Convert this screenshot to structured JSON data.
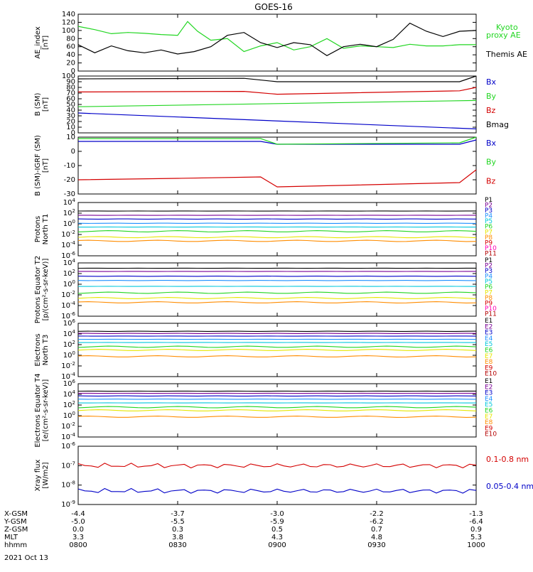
{
  "title": "GOES-16",
  "date_label": "2021 Oct 13",
  "time_axis": {
    "x_range": [
      "08:00",
      "10:00"
    ],
    "rows": [
      {
        "label": "X-GSM",
        "values": [
          "-4.4",
          "-3.7",
          "-3.0",
          "-2.2",
          "-1.3"
        ]
      },
      {
        "label": "Y-GSM",
        "values": [
          "-5.0",
          "-5.5",
          "-5.9",
          "-6.2",
          "-6.4"
        ]
      },
      {
        "label": "Z-GSM",
        "values": [
          "0.0",
          "0.3",
          "0.5",
          "0.7",
          "0.9"
        ]
      },
      {
        "label": "MLT",
        "values": [
          "3.3",
          "3.8",
          "4.3",
          "4.8",
          "5.3"
        ]
      },
      {
        "label": "hhmm",
        "values": [
          "0800",
          "0830",
          "0900",
          "0930",
          "1000"
        ]
      }
    ]
  },
  "colors": {
    "black": "#000000",
    "red": "#d40000",
    "green": "#22d622",
    "blue": "#0000c8",
    "cyan": "#00c8dc",
    "yellow": "#e6e600",
    "orange": "#ff8c00",
    "purple": "#7a0096",
    "pink": "#ff00b4",
    "darkred": "#b40000",
    "lightblue": "#1e90ff"
  },
  "chart_data": [
    {
      "type": "line",
      "ylabel": "AE_index [nT]",
      "ylim": [
        0,
        140
      ],
      "yticks": [
        "0",
        "20",
        "40",
        "60",
        "80",
        "100",
        "120",
        "140"
      ],
      "series": [
        {
          "name": "Kyoto proxy AE",
          "color": "#22d622",
          "x": [
            "08:00",
            "08:05",
            "08:10",
            "08:15",
            "08:20",
            "08:25",
            "08:30",
            "08:33",
            "08:36",
            "08:40",
            "08:45",
            "08:50",
            "08:55",
            "09:00",
            "09:05",
            "09:10",
            "09:15",
            "09:20",
            "09:25",
            "09:30",
            "09:35",
            "09:40",
            "09:45",
            "09:50",
            "09:55",
            "10:00"
          ],
          "values": [
            110,
            102,
            92,
            95,
            93,
            90,
            88,
            122,
            98,
            76,
            80,
            48,
            62,
            70,
            52,
            60,
            80,
            56,
            62,
            60,
            58,
            66,
            62,
            62,
            65,
            65
          ]
        },
        {
          "name": "Themis AE",
          "color": "#000000",
          "x": [
            "08:00",
            "08:05",
            "08:10",
            "08:15",
            "08:20",
            "08:25",
            "08:30",
            "08:35",
            "08:40",
            "08:45",
            "08:50",
            "08:55",
            "09:00",
            "09:05",
            "09:10",
            "09:15",
            "09:20",
            "09:25",
            "09:30",
            "09:35",
            "09:40",
            "09:45",
            "09:50",
            "09:55",
            "10:00"
          ],
          "values": [
            65,
            45,
            62,
            50,
            45,
            52,
            42,
            48,
            60,
            88,
            95,
            70,
            58,
            70,
            65,
            38,
            60,
            66,
            60,
            78,
            118,
            98,
            85,
            98,
            100
          ]
        }
      ]
    },
    {
      "type": "line",
      "ylabel": "B (SM) [nT]",
      "ylim": [
        0,
        100
      ],
      "yticks": [
        "0",
        "10",
        "20",
        "30",
        "40",
        "50",
        "60",
        "70",
        "80",
        "90",
        "100"
      ],
      "series": [
        {
          "name": "Bx",
          "color": "#0000c8",
          "x": [
            "08:00",
            "10:00"
          ],
          "values": [
            35,
            7
          ]
        },
        {
          "name": "By",
          "color": "#22d622",
          "x": [
            "08:00",
            "10:00"
          ],
          "values": [
            46,
            57
          ]
        },
        {
          "name": "Bz",
          "color": "#d40000",
          "x": [
            "08:00",
            "08:50",
            "09:00",
            "09:55",
            "10:00"
          ],
          "values": [
            72,
            73,
            68,
            74,
            80
          ]
        },
        {
          "name": "Bmag",
          "color": "#000000",
          "x": [
            "08:00",
            "08:50",
            "09:00",
            "09:55",
            "10:00"
          ],
          "values": [
            95,
            96,
            90,
            90,
            100
          ]
        }
      ]
    },
    {
      "type": "line",
      "ylabel": "B (SM)-IGRF (SM) [nT]",
      "ylim": [
        -30,
        10
      ],
      "yticks": [
        "-30",
        "-20",
        "-10",
        "0",
        "10"
      ],
      "series": [
        {
          "name": "Bx",
          "color": "#0000c8",
          "x": [
            "08:00",
            "08:55",
            "09:00",
            "09:55",
            "10:00"
          ],
          "values": [
            7,
            7,
            5,
            5,
            8
          ]
        },
        {
          "name": "By",
          "color": "#22d622",
          "x": [
            "08:00",
            "08:55",
            "09:00",
            "09:55",
            "10:00"
          ],
          "values": [
            9,
            9,
            5,
            6,
            10
          ]
        },
        {
          "name": "Bz",
          "color": "#d40000",
          "x": [
            "08:00",
            "08:30",
            "08:55",
            "09:00",
            "09:55",
            "10:00"
          ],
          "values": [
            -20,
            -19,
            -18,
            -25,
            -22,
            -13
          ]
        }
      ]
    },
    {
      "type": "line",
      "log": true,
      "ylabel": "Protons North T1",
      "ylim": [
        -6,
        4
      ],
      "yticks": [
        "10^-6",
        "10^-4",
        "10^-2",
        "10^0",
        "10^2",
        "10^4"
      ],
      "channels": [
        "P1",
        "P2",
        "P3",
        "P4",
        "P5",
        "P6",
        "P7",
        "P8",
        "P9",
        "P10",
        "P11"
      ],
      "channel_colors": [
        "#000000",
        "#7a0096",
        "#0000c8",
        "#1e90ff",
        "#00c8dc",
        "#22d622",
        "#e6e600",
        "#ff8c00",
        "#d40000",
        "#ff00b4",
        "#b40000"
      ],
      "levels": [
        2.4,
        1.6,
        0.9,
        0.1,
        -0.6,
        -1.4,
        -2.5,
        -3.2
      ]
    },
    {
      "type": "line",
      "log": true,
      "ylabel": "Protons Equator T2 [p/(cm²-s-sr-keV)]",
      "ylim": [
        -6,
        4
      ],
      "yticks": [
        "10^-6",
        "10^-4",
        "10^-2",
        "10^0",
        "10^2",
        "10^4"
      ],
      "channels": [
        "P1",
        "P2",
        "P3",
        "P4",
        "P5",
        "P6",
        "P7",
        "P8",
        "P9",
        "P10",
        "P11"
      ],
      "channel_colors": [
        "#000000",
        "#7a0096",
        "#0000c8",
        "#1e90ff",
        "#00c8dc",
        "#22d622",
        "#e6e600",
        "#ff8c00",
        "#d40000",
        "#ff00b4",
        "#b40000"
      ],
      "levels": [
        3.0,
        2.4,
        1.5,
        0.7,
        -0.4,
        -1.6,
        -2.6,
        -3.4
      ]
    },
    {
      "type": "line",
      "log": true,
      "ylabel": "Electrons North T3",
      "ylim": [
        -4,
        6
      ],
      "yticks": [
        "10^-4",
        "10^-2",
        "10^0",
        "10^2",
        "10^4",
        "10^6"
      ],
      "channels": [
        "E1",
        "E2",
        "E3",
        "E4",
        "E5",
        "E6",
        "E7",
        "E8",
        "E9",
        "E10"
      ],
      "channel_colors": [
        "#000000",
        "#7a0096",
        "#0000c8",
        "#1e90ff",
        "#00c8dc",
        "#22d622",
        "#e6e600",
        "#ff8c00",
        "#d40000",
        "#b40000"
      ],
      "levels": [
        4.5,
        4.1,
        3.6,
        3.0,
        2.4,
        1.6,
        1.0,
        -0.2
      ]
    },
    {
      "type": "line",
      "log": true,
      "ylabel": "Electrons Equator T4 [e/(cm²-s-sr-keV)]",
      "ylim": [
        -4,
        6
      ],
      "yticks": [
        "10^-4",
        "10^-2",
        "10^0",
        "10^2",
        "10^4",
        "10^6"
      ],
      "channels": [
        "E1",
        "E2",
        "E3",
        "E4",
        "E5",
        "E6",
        "E7",
        "E8",
        "E9",
        "E10"
      ],
      "channel_colors": [
        "#000000",
        "#7a0096",
        "#0000c8",
        "#1e90ff",
        "#00c8dc",
        "#22d622",
        "#e6e600",
        "#ff8c00",
        "#d40000",
        "#b40000"
      ],
      "levels": [
        4.6,
        4.2,
        3.7,
        3.1,
        2.4,
        1.6,
        1.0,
        -0.2
      ]
    },
    {
      "type": "line",
      "log": true,
      "ylabel": "Xray flux [W/m2]",
      "ylim": [
        -9,
        -6
      ],
      "yticks": [
        "10^-9",
        "10^-8",
        "10^-7",
        "10^-6"
      ],
      "series": [
        {
          "name": "0.1-0.8 nm",
          "color": "#d40000",
          "x": [
            "08:00",
            "10:00"
          ],
          "values": [
            1e-07,
            1e-07
          ]
        },
        {
          "name": "0.05-0.4 nm",
          "color": "#0000c8",
          "x": [
            "08:00",
            "10:00"
          ],
          "values": [
            5e-09,
            5e-09
          ]
        }
      ]
    }
  ]
}
